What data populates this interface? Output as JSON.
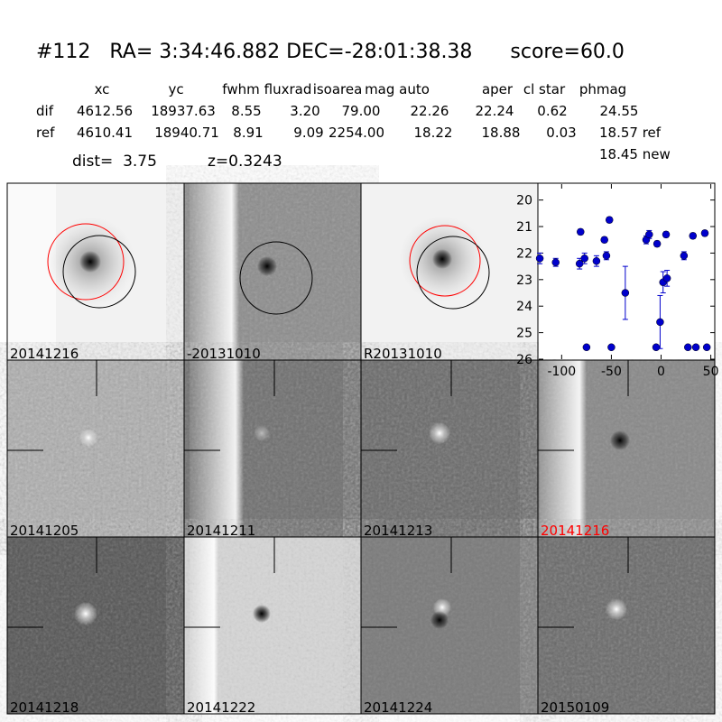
{
  "header": {
    "title": "#112   RA= 3:34:46.882 DEC=-28:01:38.38      score=60.0",
    "dist": "dist=  3.75",
    "z": "z=0.3243",
    "new_mag": "18.45 new"
  },
  "table": {
    "columns": [
      "xc",
      "yc",
      "fwhm",
      "fluxrad",
      "isoarea",
      "mag auto",
      "aper",
      "cl star",
      "phmag"
    ],
    "rows": [
      [
        "dif",
        "4612.56",
        "18937.63",
        "8.55",
        "3.20",
        "79.00",
        "22.26",
        "22.24",
        "0.62",
        "24.55"
      ],
      [
        "ref",
        "4610.41",
        "18940.71",
        "8.91",
        "9.09",
        "2254.00",
        "18.22",
        "18.88",
        "0.03",
        "18.57 ref"
      ]
    ]
  },
  "panels": [
    {
      "label": "20141216"
    },
    {
      "label": "-20131010"
    },
    {
      "label": "R20131010"
    },
    {
      "label": "20141205"
    },
    {
      "label": "20141211"
    },
    {
      "label": "20141213"
    },
    {
      "label": "20141216",
      "label_color": "#ff0000"
    },
    {
      "label": "20141218"
    },
    {
      "label": "20141222"
    },
    {
      "label": "20141224"
    },
    {
      "label": "20150109"
    }
  ],
  "chart_data": {
    "type": "scatter",
    "x": [
      -122,
      -106,
      -81,
      -82,
      -77,
      -75,
      -65,
      -57,
      -55,
      -52,
      -50,
      -36,
      -15,
      -12,
      -5,
      -4,
      -1,
      2,
      6,
      5,
      23,
      27,
      32,
      35,
      44,
      46
    ],
    "series": [
      {
        "color": "#0000cc",
        "values": [
          22.2,
          22.35,
          21.2,
          22.4,
          22.2,
          25.55,
          22.3,
          21.5,
          22.1,
          20.75,
          25.55,
          23.5,
          21.5,
          21.3,
          25.55,
          21.65,
          24.6,
          23.1,
          22.95,
          21.3,
          22.1,
          25.55,
          21.35,
          25.55,
          21.25,
          25.55
        ],
        "errors": [
          0.2,
          0.15,
          0.1,
          0.2,
          0.2,
          0.05,
          0.2,
          0.1,
          0.15,
          0.1,
          0.05,
          1.0,
          0.15,
          0.15,
          0.05,
          0.1,
          1.0,
          0.4,
          0.3,
          0.1,
          0.15,
          0.05,
          0.1,
          0.05,
          0.1,
          0.05
        ]
      }
    ],
    "xlim": [
      -123,
      54
    ],
    "xticks": [
      -100,
      -50,
      0,
      50
    ],
    "ylim": [
      26,
      19.4
    ],
    "yticks": [
      20,
      21,
      22,
      23,
      24,
      25,
      26
    ]
  }
}
